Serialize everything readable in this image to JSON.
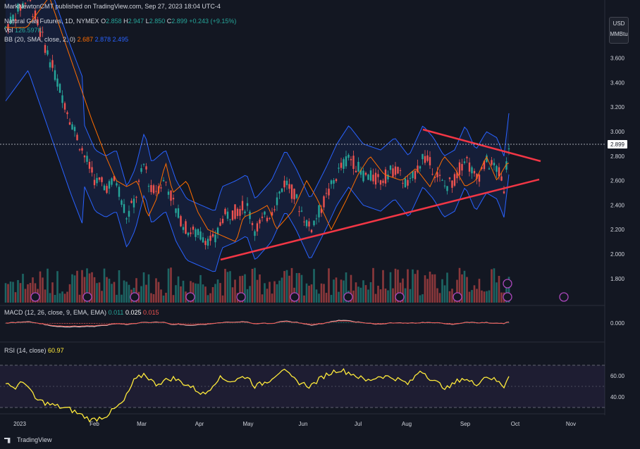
{
  "publish_line": "MarkNewtonCMT published on TradingView.com, Sep 27, 2023 18:04 UTC-4",
  "legend": {
    "symbol": "Natural Gas Futures, 1D, NYMEX",
    "o_label": "O",
    "o": "2.858",
    "h_label": "H",
    "h": "2.947",
    "l_label": "L",
    "l": "2.850",
    "c_label": "C",
    "c": "2.899",
    "change": "+0.243 (+9.15%)",
    "vol_label": "Vol",
    "vol": "126.597K",
    "bb_label": "BB (20, SMA, close, 2, 0)",
    "bb_basis": "2.687",
    "bb_upper": "2.878",
    "bb_lower": "2.495",
    "macd_label": "MACD (12, 26, close, 9, EMA, EMA)",
    "macd_hist": "0.011",
    "macd_line": "0.025",
    "macd_signal": "0.015",
    "rsi_label": "RSI (14, close)",
    "rsi": "60.97"
  },
  "axis": {
    "currency": "USD",
    "unit": "MMBtu",
    "price_ticks": [
      "3.600",
      "3.400",
      "3.200",
      "3.000",
      "2.800",
      "2.600",
      "2.400",
      "2.200",
      "2.000",
      "1.800"
    ],
    "price_values": [
      3.6,
      3.4,
      3.2,
      3.0,
      2.8,
      2.6,
      2.4,
      2.2,
      2.0,
      1.8
    ],
    "last_price": "2.899",
    "macd_tick": "0.000",
    "rsi_ticks": [
      "60.00",
      "40.00"
    ],
    "time_labels": [
      "2023",
      "Feb",
      "Mar",
      "Apr",
      "May",
      "Jun",
      "Jul",
      "Aug",
      "Sep",
      "Oct",
      "Nov"
    ]
  },
  "brand": "TradingView",
  "colors": {
    "bg": "#131722",
    "up": "#26a69a",
    "down": "#ef5350",
    "bb_band": "#2962ff",
    "bb_basis": "#ff6d00",
    "trendline": "#f23645",
    "rsi": "#ffeb3b",
    "macd_line": "#ffffff",
    "macd_signal": "#ef5350"
  },
  "chart_data": {
    "type": "candlestick",
    "x": [
      "2023-01-03",
      "2023-02-01",
      "2023-03-01",
      "2023-04-03",
      "2023-05-01",
      "2023-06-01",
      "2023-07-03",
      "2023-08-01",
      "2023-09-01",
      "2023-09-27"
    ],
    "close": [
      4.0,
      2.7,
      2.8,
      2.1,
      2.25,
      2.3,
      2.75,
      2.6,
      2.75,
      2.899
    ],
    "bb_upper": [
      4.6,
      3.1,
      3.0,
      2.5,
      2.5,
      2.6,
      2.9,
      2.85,
      2.85,
      2.878
    ],
    "bb_basis": [
      4.0,
      3.2,
      2.65,
      2.3,
      2.2,
      2.35,
      2.55,
      2.7,
      2.65,
      2.687
    ],
    "bb_lower": [
      3.6,
      2.3,
      2.0,
      1.9,
      2.0,
      2.05,
      2.35,
      2.5,
      2.45,
      2.495
    ],
    "trendlines": [
      {
        "name": "",
        "points": [
          [
            "2023-04-18",
            1.95
          ],
          [
            "2023-10-07",
            2.6
          ]
        ]
      },
      {
        "name": "",
        "points": [
          [
            "2023-08-10",
            3.02
          ],
          [
            "2023-10-07",
            2.77
          ]
        ]
      }
    ],
    "rsi": [
      30,
      25,
      50,
      35,
      50,
      45,
      65,
      55,
      55,
      60.97
    ],
    "ylim": [
      1.7,
      3.95
    ]
  }
}
